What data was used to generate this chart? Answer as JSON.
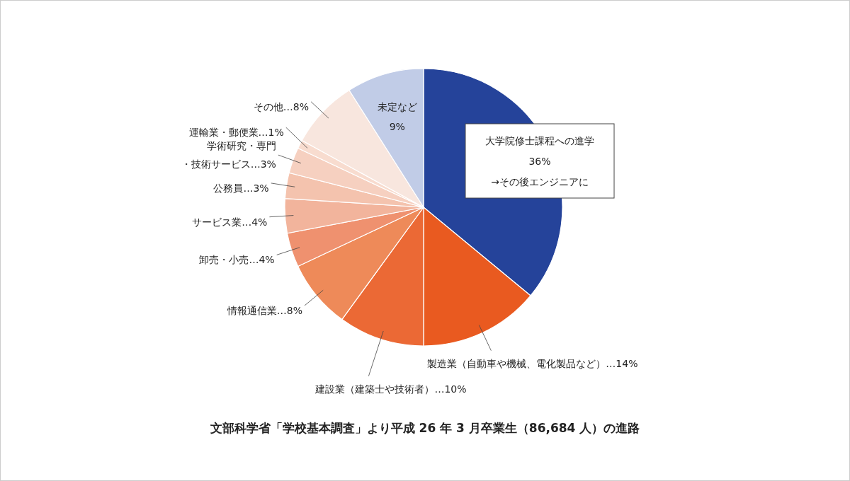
{
  "chart_data": {
    "type": "pie",
    "title": "文部科学省「学校基本調査」より平成 26 年 3 月卒業生（86,684 人）の進路",
    "categories": [
      "大学院修士課程への進学\n36%\n→その後エンジニアに",
      "製造業（自動車や機械、電化製品など）…14%",
      "建設業（建築士や技術者）…10%",
      "情報通信業…8%",
      "卸売・小売…4%",
      "サービス業…4%",
      "公務員…3%",
      "学術研究・専門・技術サービス…3%",
      "運輸業・郵便業…1%",
      "その他…8%",
      "未定など\n9%"
    ],
    "values": [
      36,
      14,
      10,
      8,
      4,
      4,
      3,
      3,
      1,
      8,
      9
    ],
    "colors": [
      "#25439a",
      "#e95a20",
      "#eb6935",
      "#ee8a59",
      "#ef916f",
      "#f2b49c",
      "#f4c3ae",
      "#f6d0c0",
      "#f8dccf",
      "#f8e6de",
      "#c1cce7"
    ]
  }
}
